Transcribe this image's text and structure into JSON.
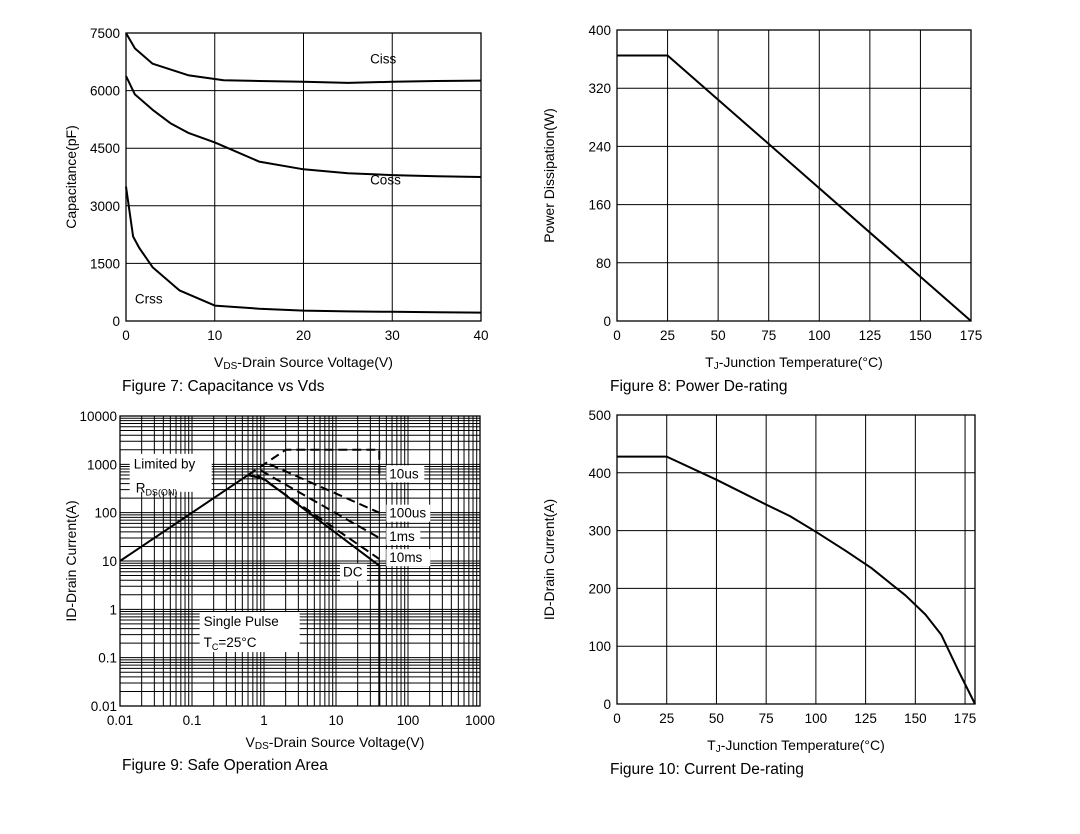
{
  "chart_data": [
    {
      "type": "line",
      "caption": "Figure 7: Capacitance vs Vds",
      "xlabel_prefix": "V",
      "xlabel_sub": "DS",
      "xlabel_rest": "-Drain Source Voltage(V)",
      "ylabel": "Capacitance(pF)",
      "xlim": [
        0,
        40
      ],
      "ylim": [
        0,
        7500
      ],
      "x_ticks": [
        "0",
        "10",
        "20",
        "30",
        "40"
      ],
      "y_ticks": [
        "0",
        "1500",
        "3000",
        "4500",
        "6000",
        "7500"
      ],
      "grid": true,
      "series": [
        {
          "name": "Ciss",
          "x": [
            0,
            1,
            3,
            7,
            11,
            15,
            20,
            25,
            30,
            35,
            40
          ],
          "y": [
            7500,
            7100,
            6700,
            6400,
            6270,
            6250,
            6230,
            6200,
            6230,
            6250,
            6260
          ]
        },
        {
          "name": "Coss",
          "x": [
            0,
            1,
            3,
            5,
            7,
            10,
            12,
            15,
            20,
            25,
            30,
            35,
            40
          ],
          "y": [
            6380,
            5900,
            5500,
            5150,
            4900,
            4650,
            4450,
            4150,
            3950,
            3850,
            3800,
            3770,
            3750
          ]
        },
        {
          "name": "Crss",
          "x": [
            0,
            0.8,
            1.5,
            3,
            6,
            10,
            15,
            20,
            25,
            30,
            35,
            40
          ],
          "y": [
            3500,
            2200,
            1900,
            1400,
            800,
            400,
            320,
            270,
            250,
            240,
            230,
            220
          ]
        }
      ]
    },
    {
      "type": "line",
      "caption": "Figure 8: Power De-rating",
      "xlabel_prefix": "T",
      "xlabel_sub": "J",
      "xlabel_rest": "-Junction Temperature(°C)",
      "ylabel": "Power Dissipation(W)",
      "xlim": [
        0,
        175
      ],
      "ylim": [
        0,
        400
      ],
      "x_ticks": [
        "0",
        "25",
        "50",
        "75",
        "100",
        "125",
        "150",
        "175"
      ],
      "y_ticks": [
        "0",
        "80",
        "160",
        "240",
        "320",
        "400"
      ],
      "grid": true,
      "series": [
        {
          "x": [
            0,
            25,
            175
          ],
          "y": [
            365,
            365,
            0
          ]
        }
      ]
    },
    {
      "type": "line",
      "scale": "log-log",
      "caption": "Figure 9: Safe Operation Area",
      "xlabel_prefix": "V",
      "xlabel_sub": "DS",
      "xlabel_rest": "-Drain Source Voltage(V)",
      "ylabel": "ID-Drain Current(A)",
      "xlim": [
        0.01,
        1000
      ],
      "ylim": [
        0.01,
        10000
      ],
      "x_ticks": [
        "0.01",
        "0.1",
        "1",
        "10",
        "100",
        "1000"
      ],
      "y_ticks": [
        "0.01",
        "0.1",
        "1",
        "10",
        "100",
        "1000",
        "10000"
      ],
      "grid": true,
      "annotations": {
        "limited_line1": "Limited by",
        "limited_line2_main": "R",
        "limited_line2_sub": "DS(ON)",
        "pulse_line1": "Single Pulse",
        "pulse_line2_main": "T",
        "pulse_line2_sub": "C",
        "pulse_line2_rest": "=25°C"
      },
      "series": [
        {
          "name": "Limited by RDS(ON)",
          "style": "solid",
          "x": [
            0.01,
            0.6
          ],
          "y": [
            10,
            600
          ]
        },
        {
          "name": "10us",
          "style": "dashed",
          "x": [
            0.6,
            2,
            40,
            40
          ],
          "y": [
            600,
            2000,
            2000,
            600
          ]
        },
        {
          "name": "100us",
          "style": "dashed",
          "x": [
            1.2,
            40
          ],
          "y": [
            1000,
            100
          ]
        },
        {
          "name": "1ms",
          "style": "dashed",
          "x": [
            0.9,
            40
          ],
          "y": [
            750,
            30
          ]
        },
        {
          "name": "10ms",
          "style": "dashed",
          "x": [
            0.8,
            40
          ],
          "y": [
            600,
            11
          ]
        },
        {
          "name": "DC",
          "style": "solid",
          "x": [
            0.6,
            1,
            40,
            40
          ],
          "y": [
            600,
            500,
            8,
            0.01
          ]
        }
      ]
    },
    {
      "type": "line",
      "caption": "Figure 10: Current De-rating",
      "xlabel_prefix": "T",
      "xlabel_sub": "J",
      "xlabel_rest": "-Junction Temperature(°C)",
      "ylabel": "ID-Drain Current(A)",
      "xlim": [
        0,
        180
      ],
      "ylim": [
        0,
        500
      ],
      "x_ticks": [
        "0",
        "25",
        "50",
        "75",
        "100",
        "125",
        "150",
        "175"
      ],
      "x_tick_values": [
        0,
        25,
        50,
        75,
        100,
        125,
        150,
        175
      ],
      "y_ticks": [
        "0",
        "100",
        "200",
        "300",
        "400",
        "500"
      ],
      "grid": true,
      "series": [
        {
          "x": [
            0,
            25,
            50,
            75,
            87,
            100,
            115,
            128,
            137,
            145,
            155,
            163,
            172,
            180
          ],
          "y": [
            428,
            428,
            388,
            345,
            325,
            298,
            265,
            235,
            210,
            188,
            155,
            120,
            55,
            0
          ]
        }
      ]
    }
  ]
}
